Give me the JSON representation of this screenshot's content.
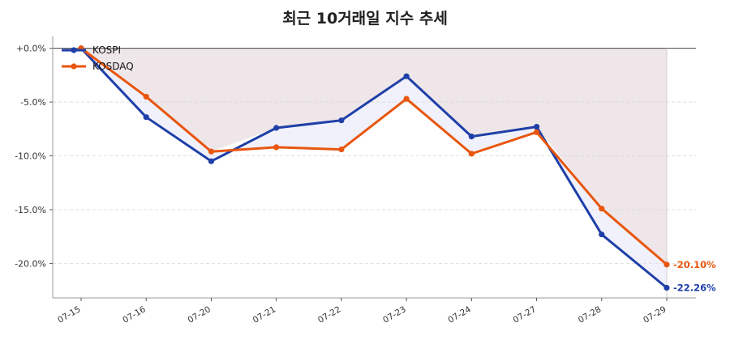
{
  "chart_data": {
    "type": "line",
    "title": "최근 10거래일 지수 추세",
    "categories": [
      "07-15",
      "07-16",
      "07-20",
      "07-21",
      "07-22",
      "07-23",
      "07-24",
      "07-27",
      "07-28",
      "07-29"
    ],
    "series": [
      {
        "name": "KOSPI",
        "color": "#1f3fa8",
        "values": [
          0.0,
          -6.4,
          -10.5,
          -7.4,
          -6.7,
          -2.6,
          -8.2,
          -7.3,
          -17.3,
          -22.26
        ]
      },
      {
        "name": "KOSDAQ",
        "color": "#e8560f",
        "values": [
          0.0,
          -4.5,
          -9.6,
          -9.2,
          -9.4,
          -4.7,
          -9.8,
          -7.8,
          -14.9,
          -20.1
        ]
      }
    ],
    "end_labels": [
      "-22.26%",
      "-20.10%"
    ],
    "y_ticks": [
      0,
      -5,
      -10,
      -15,
      -20
    ],
    "y_tick_labels": [
      "+0.0%",
      "-5.0%",
      "-10.0%",
      "-15.0%",
      "-20.0%"
    ],
    "ylim": [
      -23.2,
      1.1
    ],
    "grid": true,
    "legend_position": "top-left",
    "shade_color_area": "#e8dde0",
    "shade_color_between": "#eef0fb"
  }
}
